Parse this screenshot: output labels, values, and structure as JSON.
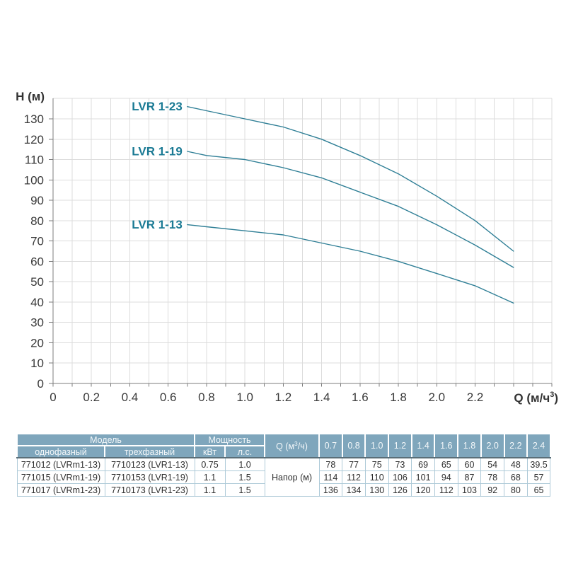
{
  "chart_data": {
    "type": "line",
    "title": "",
    "ylabel": "H (м)",
    "xlabel_prefix": "Q (м/ч",
    "xlabel_sup": "3",
    "xlabel_suffix": ")",
    "xlim": [
      0,
      2.6
    ],
    "ylim": [
      0,
      140
    ],
    "x_labeled_tick_from": 0,
    "x_labeled_tick_to": 2.2,
    "x_labeled_tick_step": 0.2,
    "x_grid_step": 0.1,
    "y_grid_step": 10,
    "grid": true,
    "legend_position": "labels left of curve start",
    "x": [
      0.7,
      0.8,
      1.0,
      1.2,
      1.4,
      1.6,
      1.8,
      2.0,
      2.2,
      2.4
    ],
    "series": [
      {
        "name": "LVR 1-13",
        "values": [
          78,
          77,
          75,
          73,
          69,
          65,
          60,
          54,
          48,
          39.5
        ]
      },
      {
        "name": "LVR 1-19",
        "values": [
          114,
          112,
          110,
          106,
          101,
          94,
          87,
          78,
          68,
          57
        ]
      },
      {
        "name": "LVR 1-23",
        "values": [
          136,
          134,
          130,
          126,
          120,
          112,
          103,
          92,
          80,
          65
        ]
      }
    ],
    "colors": {
      "curve": "#2F7F96",
      "series_label": "#1A7A94",
      "grid": "#DCDCDC",
      "axis": "#7C7C7C",
      "tick_text": "#3A3A3A"
    }
  },
  "table": {
    "header": {
      "model": "Модель",
      "single_phase": "однофазный",
      "three_phase": "трехфазный",
      "power": "Мощность",
      "kw": "кВт",
      "hp": "л.с.",
      "q_prefix": "Q (м",
      "q_sup": "3",
      "q_suffix": "/ч)",
      "q_values": [
        "0.7",
        "0.8",
        "1.0",
        "1.2",
        "1.4",
        "1.6",
        "1.8",
        "2.0",
        "2.2",
        "2.4"
      ]
    },
    "napor_label": "Напор (м)",
    "rows": [
      {
        "single": "771012 (LVRm1-13)",
        "three": "7710123 (LVR1-13)",
        "kw": "0.75",
        "hp": "1.0",
        "heads": [
          "78",
          "77",
          "75",
          "73",
          "69",
          "65",
          "60",
          "54",
          "48",
          "39.5"
        ]
      },
      {
        "single": "771015 (LVRm1-19)",
        "three": "7710153 (LVR1-19)",
        "kw": "1.1",
        "hp": "1.5",
        "heads": [
          "114",
          "112",
          "110",
          "106",
          "101",
          "94",
          "87",
          "78",
          "68",
          "57"
        ]
      },
      {
        "single": "771017 (LVRm1-23)",
        "three": "7710173 (LVR1-23)",
        "kw": "1.1",
        "hp": "1.5",
        "heads": [
          "136",
          "134",
          "130",
          "126",
          "120",
          "112",
          "103",
          "92",
          "80",
          "65"
        ]
      }
    ],
    "colors": {
      "header_bg": "#7FA6BC",
      "header_text": "#F4F8FA",
      "border": "#AECAD8",
      "header_divider": "#5A6E78",
      "body_text": "#2E2E2E"
    }
  }
}
